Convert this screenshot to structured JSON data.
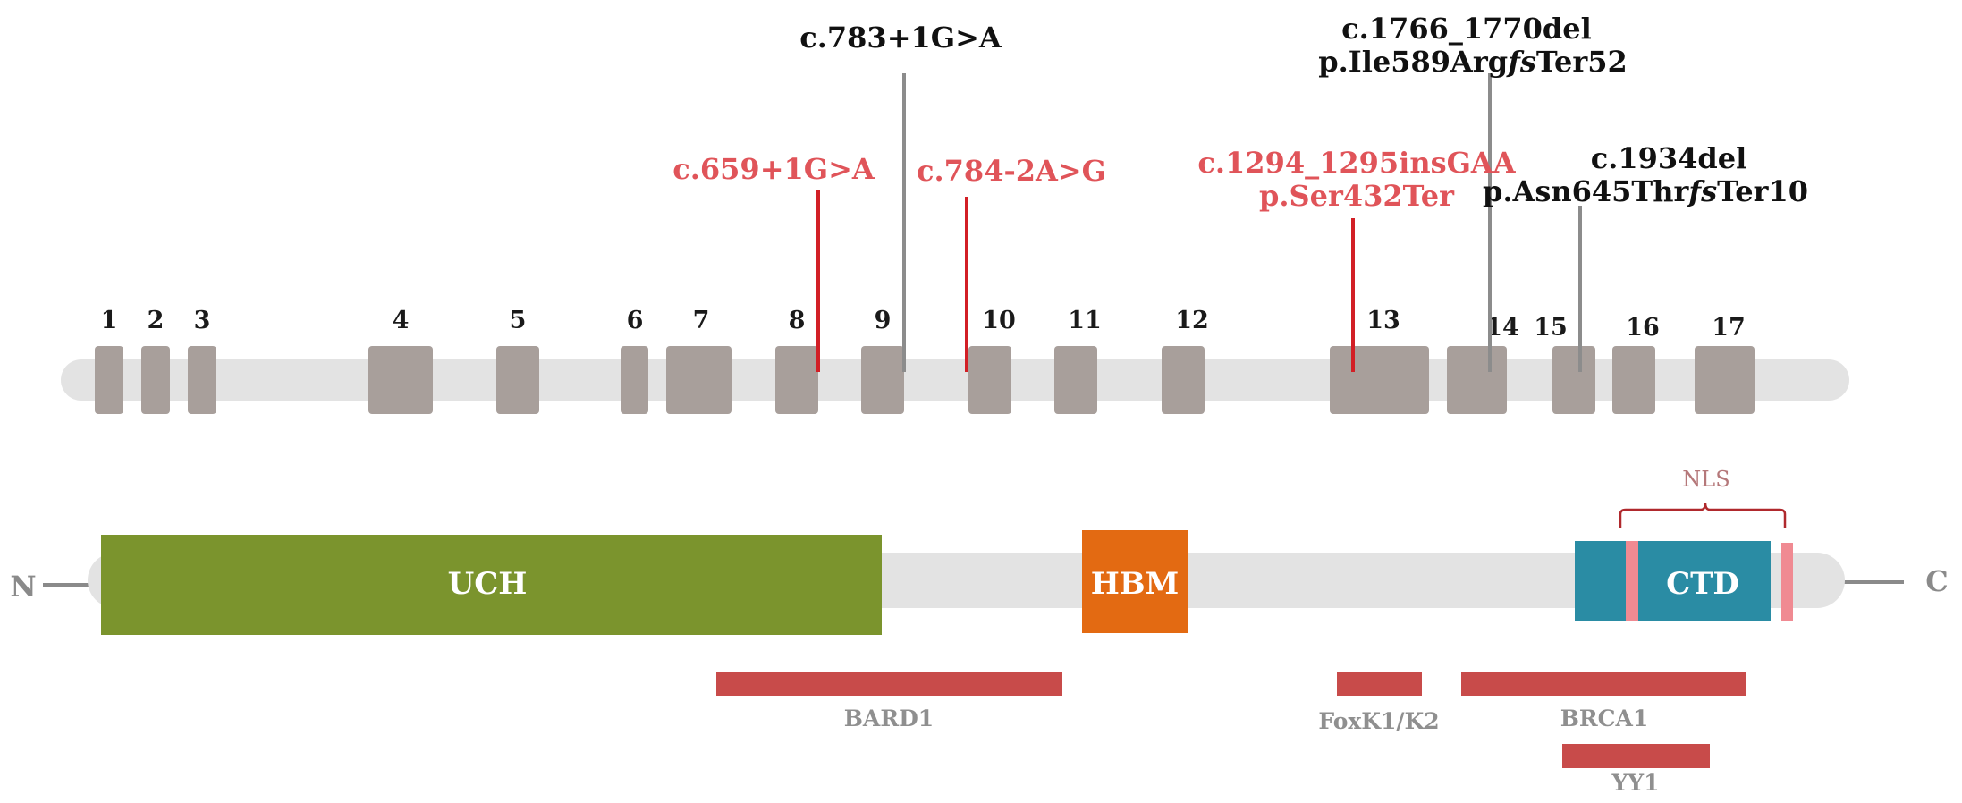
{
  "colors": {
    "track": "#e3e3e3",
    "exon": "#a89f9b",
    "mut_red_line": "#d21f26",
    "mut_gray_line": "#8c8c8c",
    "mut_red_text": "#e05459",
    "mut_black_text": "#111111",
    "uch": "#7b942d",
    "hbm": "#e36a12",
    "ctd": "#2a8ca4",
    "nls_mark": "#f08a92",
    "nls_brace": "#b0292d",
    "binding": "#c84b4a",
    "terminal": "#8a8a8a"
  },
  "exons": [
    "1",
    "2",
    "3",
    "4",
    "5",
    "6",
    "7",
    "8",
    "9",
    "10",
    "11",
    "12",
    "13",
    "14",
    "15",
    "16",
    "17"
  ],
  "mutations": [
    {
      "lines": [
        "c.659+1G>A"
      ],
      "style": "red"
    },
    {
      "lines": [
        "c.783+1G>A"
      ],
      "style": "black"
    },
    {
      "lines": [
        "c.784-2A>G"
      ],
      "style": "red"
    },
    {
      "lines": [
        "c.1294_1295insGAA",
        "p.Ser432Ter"
      ],
      "style": "red"
    },
    {
      "lines": [
        "c.1766_1770del",
        "p.Ile589Arg",
        "fs",
        "Ter52"
      ],
      "style": "black"
    },
    {
      "lines": [
        "c.1934del",
        "p.Asn645Thr",
        "fs",
        "Ter10"
      ],
      "style": "black"
    }
  ],
  "protein": {
    "n_terminus": "N",
    "c_terminus": "C",
    "domains": [
      "UCH",
      "HBM",
      "CTD"
    ],
    "nls": "NLS"
  },
  "binding_regions": [
    "BARD1",
    "FoxK1/K2",
    "BRCA1",
    "YY1"
  ]
}
